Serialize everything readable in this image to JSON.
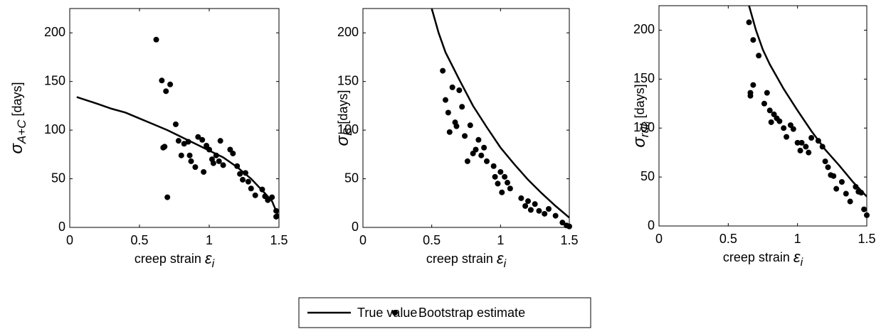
{
  "chart_data": [
    {
      "type": "line",
      "xlabel": {
        "text": "creep strain",
        "symbol": "ε",
        "subscript": "i"
      },
      "ylabel": {
        "symbol": "σ",
        "subscript": "A+C",
        "unit": "[days]"
      },
      "xlim": [
        0,
        1.5
      ],
      "xticks": [
        0,
        0.5,
        1,
        1.5
      ],
      "ylim": [
        0,
        225
      ],
      "yticks": [
        0,
        50,
        100,
        150,
        200
      ],
      "series": [
        {
          "name": "True value",
          "type": "line",
          "color": "#000000",
          "x": [
            0.05,
            0.2,
            0.3,
            0.4,
            0.5,
            0.6,
            0.7,
            0.8,
            0.9,
            1.0,
            1.1,
            1.2,
            1.3,
            1.4,
            1.45,
            1.5
          ],
          "values": [
            134,
            127,
            122,
            118,
            112,
            106,
            100,
            93,
            86,
            79,
            72,
            62,
            50,
            35,
            27,
            10
          ]
        },
        {
          "name": "Bootstrap estimate",
          "type": "scatter",
          "color": "#000000",
          "x": [
            0.62,
            0.66,
            0.69,
            0.72,
            0.67,
            0.68,
            0.7,
            0.76,
            0.78,
            0.8,
            0.82,
            0.85,
            0.86,
            0.87,
            0.9,
            0.92,
            0.95,
            0.96,
            0.98,
            1.0,
            1.02,
            1.03,
            1.05,
            1.07,
            1.08,
            1.1,
            1.15,
            1.17,
            1.2,
            1.22,
            1.24,
            1.26,
            1.28,
            1.3,
            1.33,
            1.38,
            1.4,
            1.42,
            1.45,
            1.48,
            1.48
          ],
          "values": [
            193,
            151,
            140,
            147,
            82,
            83,
            31,
            106,
            89,
            74,
            86,
            88,
            74,
            68,
            62,
            93,
            90,
            57,
            84,
            80,
            70,
            66,
            74,
            68,
            89,
            64,
            80,
            76,
            63,
            55,
            49,
            56,
            47,
            40,
            33,
            39,
            32,
            28,
            31,
            17,
            11
          ]
        }
      ]
    },
    {
      "type": "line",
      "xlabel": {
        "text": "creep strain",
        "symbol": "ε",
        "subscript": "i"
      },
      "ylabel": {
        "symbol": "σ",
        "subscript": "B",
        "unit": "[days]"
      },
      "xlim": [
        0,
        1.5
      ],
      "xticks": [
        0,
        0.5,
        1,
        1.5
      ],
      "ylim": [
        0,
        225
      ],
      "yticks": [
        0,
        50,
        100,
        150,
        200
      ],
      "series": [
        {
          "type": "line",
          "color": "#000000",
          "x": [
            0.5,
            0.55,
            0.6,
            0.7,
            0.8,
            0.9,
            1.0,
            1.1,
            1.2,
            1.3,
            1.4,
            1.5
          ],
          "values": [
            225,
            200,
            180,
            152,
            125,
            103,
            82,
            65,
            49,
            35,
            22,
            10
          ]
        },
        {
          "type": "scatter",
          "color": "#000000",
          "x": [
            0.58,
            0.6,
            0.62,
            0.63,
            0.65,
            0.67,
            0.68,
            0.7,
            0.72,
            0.74,
            0.76,
            0.78,
            0.8,
            0.82,
            0.84,
            0.86,
            0.88,
            0.9,
            0.95,
            0.96,
            0.98,
            1.0,
            1.01,
            1.03,
            1.05,
            1.07,
            1.15,
            1.18,
            1.2,
            1.22,
            1.25,
            1.28,
            1.32,
            1.35,
            1.4,
            1.45,
            1.48,
            1.5
          ],
          "values": [
            161,
            131,
            118,
            98,
            144,
            108,
            104,
            141,
            124,
            94,
            68,
            105,
            76,
            80,
            90,
            74,
            82,
            68,
            63,
            52,
            45,
            57,
            36,
            52,
            46,
            40,
            30,
            22,
            27,
            18,
            24,
            17,
            14,
            19,
            12,
            5,
            2,
            1
          ]
        }
      ]
    },
    {
      "type": "line",
      "xlabel": {
        "text": "creep strain",
        "symbol": "ε",
        "subscript": "i"
      },
      "ylabel": {
        "symbol": "σ",
        "subscript": "rūl",
        "subsubscript": "i",
        "unit": "[days]"
      },
      "xlim": [
        0,
        1.5
      ],
      "xticks": [
        0,
        0.5,
        1,
        1.5
      ],
      "ylim": [
        0,
        225
      ],
      "yticks": [
        0,
        50,
        100,
        150,
        200
      ],
      "series": [
        {
          "type": "line",
          "color": "#000000",
          "x": [
            0.65,
            0.7,
            0.75,
            0.8,
            0.9,
            1.0,
            1.1,
            1.2,
            1.3,
            1.4,
            1.5
          ],
          "values": [
            225,
            200,
            180,
            165,
            140,
            118,
            97,
            78,
            62,
            45,
            30
          ]
        },
        {
          "type": "scatter",
          "color": "#000000",
          "x": [
            0.65,
            0.68,
            0.72,
            0.66,
            0.66,
            0.68,
            0.76,
            0.78,
            0.8,
            0.81,
            0.83,
            0.85,
            0.87,
            0.9,
            0.92,
            0.95,
            0.97,
            1.0,
            1.02,
            1.03,
            1.06,
            1.08,
            1.1,
            1.15,
            1.18,
            1.2,
            1.22,
            1.24,
            1.26,
            1.28,
            1.32,
            1.35,
            1.38,
            1.42,
            1.44,
            1.46,
            1.48,
            1.5
          ],
          "values": [
            208,
            190,
            174,
            136,
            133,
            144,
            125,
            136,
            118,
            106,
            114,
            110,
            107,
            100,
            91,
            103,
            99,
            85,
            77,
            85,
            81,
            75,
            90,
            87,
            81,
            66,
            60,
            52,
            51,
            38,
            45,
            33,
            25,
            40,
            35,
            34,
            17,
            11
          ]
        }
      ]
    }
  ]
}
